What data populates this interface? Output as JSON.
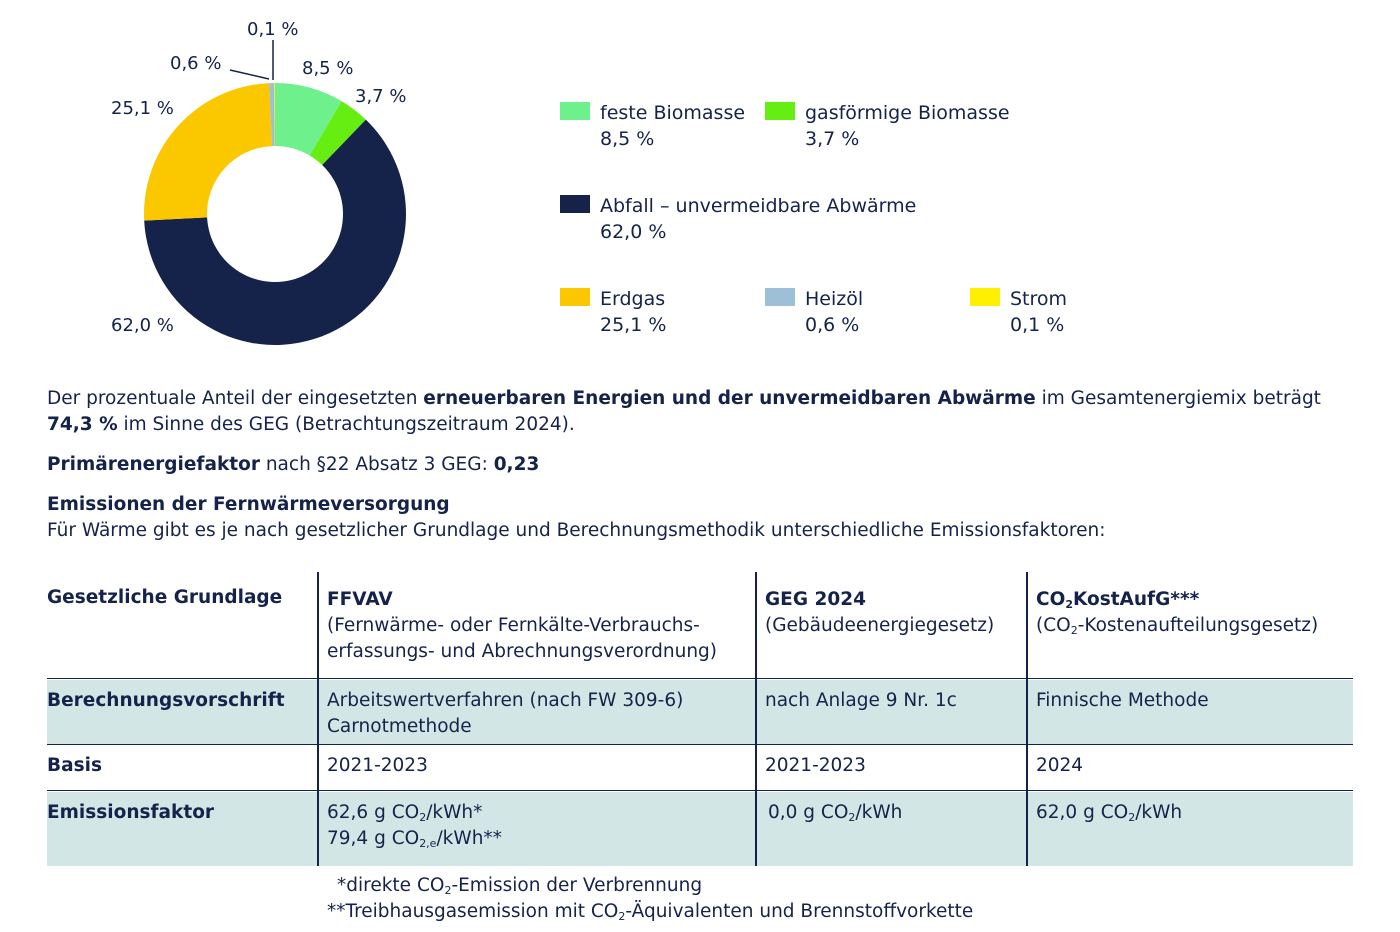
{
  "chart_data": {
    "type": "pie",
    "donut": true,
    "slices": [
      {
        "label": "feste Biomasse",
        "value": 8.5,
        "value_label": "8,5 %",
        "color": "#6ef08c"
      },
      {
        "label": "gasförmige Biomasse",
        "value": 3.7,
        "value_label": "3,7 %",
        "color": "#66ee12"
      },
      {
        "label": "Abfall – unvermeidbare Abwärme",
        "value": 62.0,
        "value_label": "62,0 %",
        "color": "#15234a"
      },
      {
        "label": "Erdgas",
        "value": 25.1,
        "value_label": "25,1 %",
        "color": "#fbc800"
      },
      {
        "label": "Heizöl",
        "value": 0.6,
        "value_label": "0,6 %",
        "color": "#9dbfd7"
      },
      {
        "label": "Strom",
        "value": 0.1,
        "value_label": "0,1 %",
        "color": "#ffef00"
      }
    ]
  },
  "text": {
    "p1_a": "Der prozentuale Anteil der eingesetzten ",
    "p1_b": "erneuerbaren Energien und der unvermeidbaren Abwärme",
    "p1_c": " im Gesamtenergiemix beträgt",
    "p2_a": "74,3 %",
    "p2_b": " im Sinne des GEG (Betrachtungszeitraum 2024).",
    "p3_a": "Primärenergiefaktor",
    "p3_b": " nach §22 Absatz 3 GEG: ",
    "p3_c": "0,23",
    "h_emis": "Emissionen der Fernwärmeversorgung",
    "p4": "Für Wärme gibt es je nach gesetzlicher Grundlage und Berechnungsmethodik unterschiedliche Emissionsfaktoren:"
  },
  "table": {
    "h_col0": "Gesetzliche Grundlage",
    "h_col1_title": "FFVAV",
    "h_col1_sub1": "(Fernwärme- oder Fernkälte-Verbrauchs-",
    "h_col1_sub2": "erfassungs- und Abrechnungsverordnung)",
    "h_col2_title": "GEG 2024",
    "h_col2_sub": "(Gebäudeenergiegesetz)",
    "h_col3_title_a": "CO",
    "h_col3_title_sub": "2",
    "h_col3_title_b": "KostAufG***",
    "h_col3_sub_a": "(CO",
    "h_col3_sub_sub": "2",
    "h_col3_sub_b": "-Kostenaufteilungsgesetz)",
    "r1_label": "Berechnungsvorschrift",
    "r1_c1_l1": "Arbeitswertverfahren (nach FW 309-6)",
    "r1_c1_l2": "Carnotmethode",
    "r1_c2": "nach Anlage 9 Nr. 1c",
    "r1_c3": "Finnische Methode",
    "r2_label": "Basis",
    "r2_c1": "2021-2023",
    "r2_c2": "2021-2023",
    "r2_c3": "2024",
    "r3_label": "Emissionsfaktor",
    "r3_c1_l1_a": "62,6 g CO",
    "r3_c1_l1_sub": "2",
    "r3_c1_l1_b": "/kWh*",
    "r3_c1_l2_a": "79,4 g CO",
    "r3_c1_l2_sub": "2,e",
    "r3_c1_l2_b": "/kWh**",
    "r3_c2_a": "0,0 g CO",
    "r3_c2_sub": "2",
    "r3_c2_b": "/kWh",
    "r3_c3_a": "62,0 g CO",
    "r3_c3_sub": "2",
    "r3_c3_b": "/kWh"
  },
  "footnotes": {
    "f1_a": "*direkte CO",
    "f1_sub": "2",
    "f1_b": "-Emission der Verbrennung",
    "f2_a": "**Treibhausgasemission mit CO",
    "f2_sub": "2",
    "f2_b": "-Äquivalenten und Brennstoffvorkette"
  }
}
